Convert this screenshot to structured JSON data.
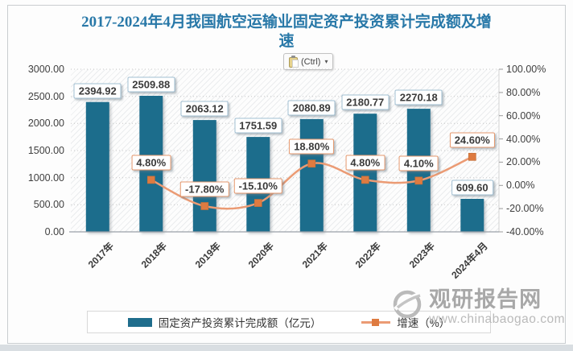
{
  "title": {
    "line1": "2017-2024年4月我国航空运输业固定资产投资累计完成额及增",
    "line2": "速"
  },
  "paste_button": {
    "label": "(Ctrl)",
    "arrow": "▾"
  },
  "chart_data": {
    "type": "combo-bar-line",
    "title": "2017-2024年4月我国航空运输业固定资产投资累计完成额及增速",
    "categories": [
      "2017年",
      "2018年",
      "2019年",
      "2020年",
      "2021年",
      "2022年",
      "2023年",
      "2024年4月"
    ],
    "series": [
      {
        "name": "固定资产投资累计完成额（亿元）",
        "type": "bar",
        "axis": "left",
        "color": "#1F6D8C",
        "values": [
          2394.92,
          2509.88,
          2063.12,
          1751.59,
          2080.89,
          2180.77,
          2270.18,
          609.6
        ],
        "labels": [
          "2394.92",
          "2509.88",
          "2063.12",
          "1751.59",
          "2080.89",
          "2180.77",
          "2270.18",
          "609.60"
        ]
      },
      {
        "name": "增速（%）",
        "type": "line",
        "axis": "right",
        "color": "#EB9B74",
        "marker_color": "#DE7B41",
        "values": [
          null,
          4.8,
          -17.8,
          -15.1,
          18.8,
          4.8,
          4.1,
          24.6
        ],
        "labels": [
          null,
          "4.80%",
          "-17.80%",
          "-15.10%",
          "18.80%",
          "4.80%",
          "4.10%",
          "24.60%"
        ]
      }
    ],
    "left_axis": {
      "min": 0,
      "max": 3000,
      "tick_labels": [
        "3000.00",
        "2500.00",
        "2000.00",
        "1500.00",
        "1000.00",
        "500.00",
        "0.00"
      ]
    },
    "right_axis": {
      "min": -40,
      "max": 100,
      "tick_labels": [
        "100.00%",
        "80.00%",
        "60.00%",
        "40.00%",
        "20.00%",
        "0.00%",
        "-20.00%",
        "-40.00%"
      ]
    },
    "grid": true,
    "legend_position": "bottom"
  },
  "legend": {
    "items": [
      {
        "label": "固定资产投资累计完成额（亿元）",
        "swatch": "bar",
        "color": "#1F6D8C"
      },
      {
        "label": "增速（%）",
        "swatch": "line",
        "color": "#EB9B74",
        "marker_color": "#DE7B41"
      }
    ]
  },
  "watermark": {
    "logo": "swirl-logo-icon",
    "name": "观研报告网",
    "url": "www.chinabaogao.com"
  },
  "colors": {
    "title": "#2878A8",
    "bar": "#1F6D8C",
    "line": "#EB9B74",
    "marker": "#DE7B41",
    "bar_label_border": "#A3C0D3",
    "line_label_border": "#E79A6F",
    "axis_text": "#3F3F3F",
    "gridline": "#C6C6C6"
  }
}
